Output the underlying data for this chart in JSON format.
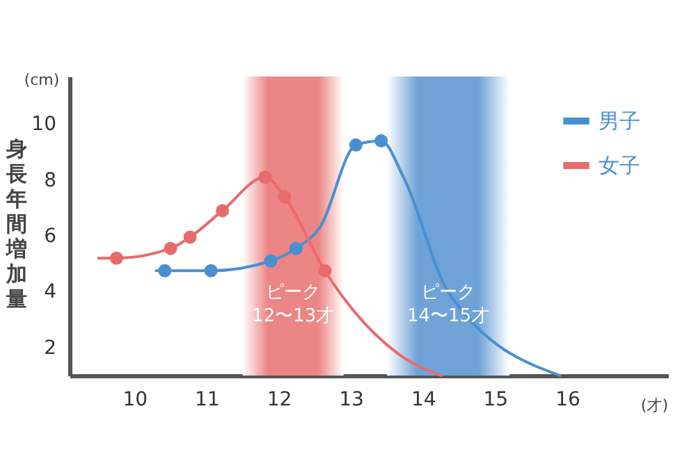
{
  "chart_data": {
    "type": "line",
    "ylabel": "身長年間増加量",
    "xlabel": "(才)",
    "annotations": [
      "(cm)"
    ],
    "xlim": [
      9.1,
      17.4
    ],
    "xticks": [
      10,
      11,
      12,
      13,
      14,
      15,
      16
    ],
    "ylim": [
      1,
      11.7
    ],
    "yticks": [
      2,
      4,
      6,
      8,
      10
    ],
    "grid": false,
    "legend": "top right",
    "line_style": "solid",
    "series": [
      {
        "name": "男子",
        "color": "#4a8fd0",
        "marker": "none",
        "x": [
          10.3,
          10.42,
          11.06,
          11.89,
          12.24,
          12.57,
          13.07,
          13.42,
          13.73,
          14.36,
          15.9
        ],
        "values": [
          4.75,
          4.75,
          4.75,
          5.1,
          5.55,
          6.3,
          9.25,
          9.4,
          8.1,
          3.95,
          1.0
        ]
      },
      {
        "name": "女子",
        "color": "#e86b6b",
        "marker": "none",
        "x": [
          9.5,
          9.75,
          10.5,
          10.77,
          11.22,
          11.81,
          12.08,
          12.64,
          13.7,
          14.25
        ],
        "values": [
          5.2,
          5.2,
          5.55,
          5.95,
          6.9,
          8.1,
          7.4,
          4.75,
          1.7,
          1.0
        ]
      },
      {
        "type": "scatter",
        "color": "#4a8fd0",
        "marker": "circle",
        "x": [
          10.42,
          11.06,
          11.89,
          12.24,
          13.07,
          13.42
        ],
        "values": [
          4.75,
          4.75,
          5.1,
          5.55,
          9.25,
          9.4
        ]
      },
      {
        "type": "scatter",
        "color": "#e86b6b",
        "marker": "circle",
        "x": [
          9.75,
          10.5,
          10.77,
          11.22,
          11.81,
          12.08,
          12.64
        ],
        "values": [
          5.2,
          5.55,
          5.95,
          6.9,
          8.1,
          7.4,
          4.75
        ]
      }
    ],
    "bands": [
      {
        "axis": "x",
        "from": 11.5,
        "to": 12.9,
        "label": "ピーク\n12〜13才",
        "color": "#ec8585"
      },
      {
        "axis": "x",
        "from": 13.5,
        "to": 15.2,
        "label": "ピーク\n14〜15才",
        "color": "#6fa3d8"
      }
    ]
  }
}
